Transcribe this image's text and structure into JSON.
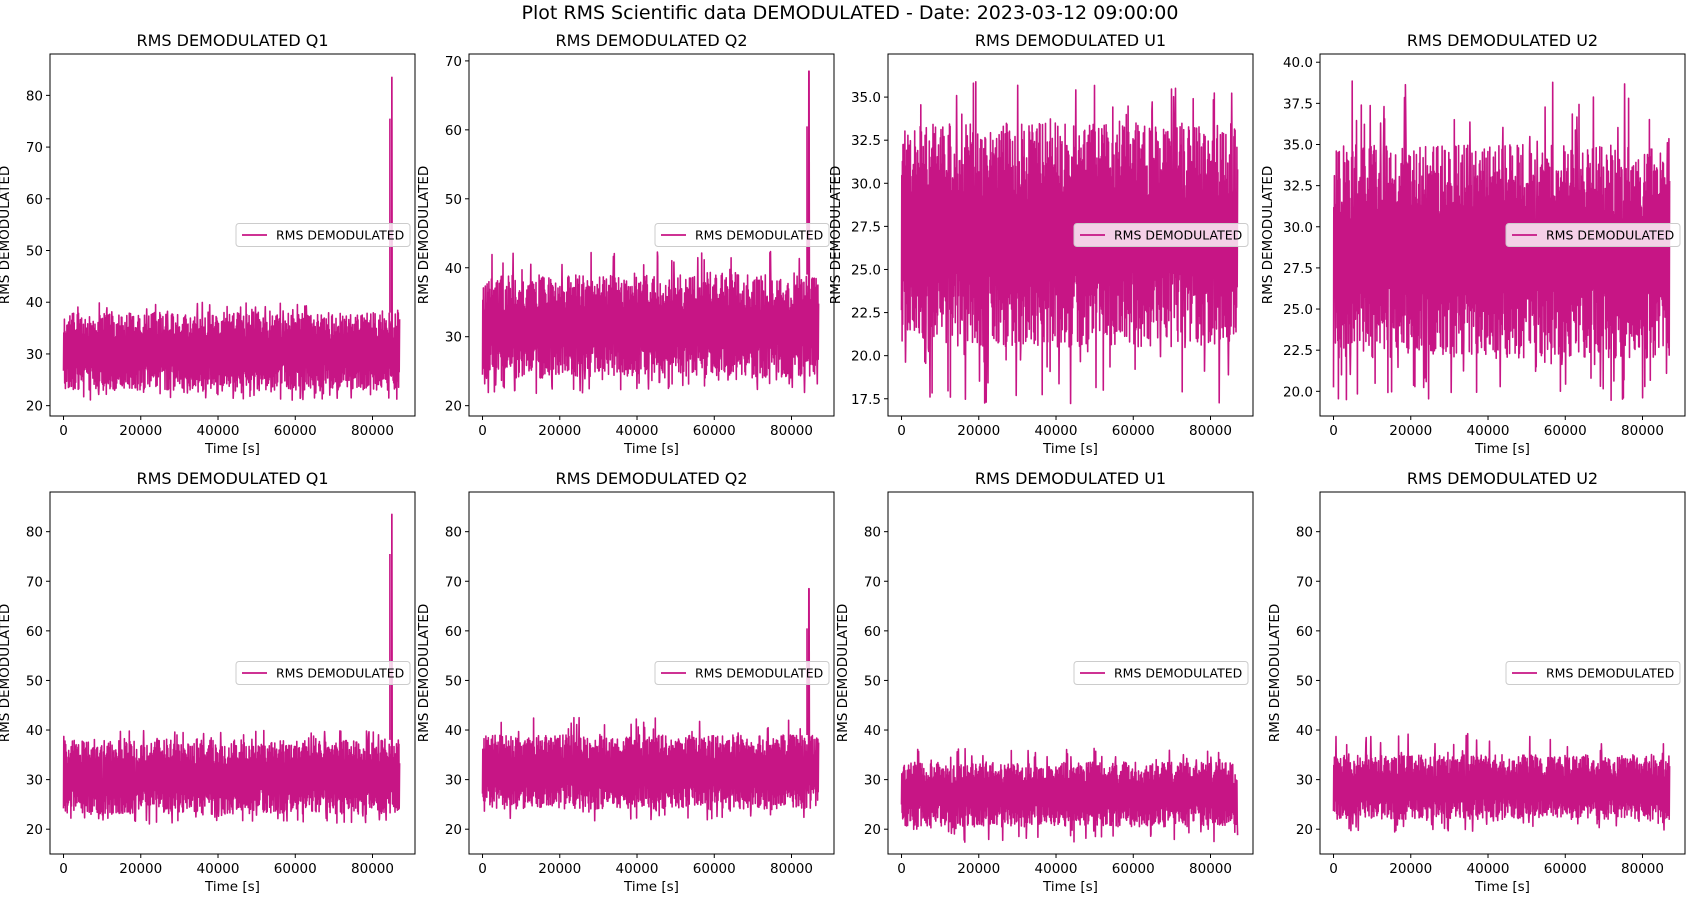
{
  "figure": {
    "title": "Plot RMS Scientific data DEMODULATED - Date: 2023-03-12 09:00:00",
    "line_color": "#C71585"
  },
  "chart_data": [
    {
      "id": "q1-top",
      "type": "line",
      "title": "RMS DEMODULATED Q1",
      "xlabel": "Time [s]",
      "ylabel": "RMS DEMODULATED",
      "xlim": [
        -3500,
        91000
      ],
      "ylim": [
        18,
        88
      ],
      "xticks": [
        0,
        20000,
        40000,
        60000,
        80000
      ],
      "yticks": [
        20,
        30,
        40,
        50,
        60,
        70,
        80
      ],
      "legend": "center-right",
      "series": [
        {
          "name": "RMS DEMODULATED",
          "x_range": [
            0,
            87000
          ],
          "band_low": 23,
          "band_high": 38,
          "extremes": [
            21,
            40
          ],
          "spike": {
            "x": 85000,
            "y": 83.5
          }
        }
      ]
    },
    {
      "id": "q2-top",
      "type": "line",
      "title": "RMS DEMODULATED Q2",
      "xlabel": "Time [s]",
      "ylabel": "RMS DEMODULATED",
      "xlim": [
        -3500,
        91000
      ],
      "ylim": [
        18.5,
        71
      ],
      "xticks": [
        0,
        20000,
        40000,
        60000,
        80000
      ],
      "yticks": [
        20,
        30,
        40,
        50,
        60,
        70
      ],
      "legend": "center-right",
      "series": [
        {
          "name": "RMS DEMODULATED",
          "x_range": [
            0,
            87000
          ],
          "band_low": 24,
          "band_high": 39,
          "extremes": [
            21.5,
            42.5
          ],
          "spike": {
            "x": 84500,
            "y": 68.5
          }
        }
      ]
    },
    {
      "id": "u1-top",
      "type": "line",
      "title": "RMS DEMODULATED U1",
      "xlabel": "Time [s]",
      "ylabel": "RMS DEMODULATED",
      "xlim": [
        -3500,
        91000
      ],
      "ylim": [
        16.5,
        37.5
      ],
      "xticks": [
        0,
        20000,
        40000,
        60000,
        80000
      ],
      "yticks": [
        17.5,
        20.0,
        22.5,
        25.0,
        27.5,
        30.0,
        32.5,
        35.0
      ],
      "legend": "center-right",
      "series": [
        {
          "name": "RMS DEMODULATED",
          "x_range": [
            0,
            87000
          ],
          "band_low": 20.5,
          "band_high": 33.5,
          "extremes": [
            17.2,
            36.3
          ],
          "spike": null
        }
      ]
    },
    {
      "id": "u2-top",
      "type": "line",
      "title": "RMS DEMODULATED U2",
      "xlabel": "Time [s]",
      "ylabel": "RMS DEMODULATED",
      "xlim": [
        -3500,
        91000
      ],
      "ylim": [
        18.5,
        40.5
      ],
      "xticks": [
        0,
        20000,
        40000,
        60000,
        80000
      ],
      "yticks": [
        20.0,
        22.5,
        25.0,
        27.5,
        30.0,
        32.5,
        35.0,
        37.5,
        40.0
      ],
      "legend": "center-right",
      "series": [
        {
          "name": "RMS DEMODULATED",
          "x_range": [
            0,
            87000
          ],
          "band_low": 22,
          "band_high": 35,
          "extremes": [
            19.2,
            39.3
          ],
          "spike": null
        }
      ]
    },
    {
      "id": "q1-bottom",
      "type": "line",
      "title": "RMS DEMODULATED Q1",
      "xlabel": "Time [s]",
      "ylabel": "RMS DEMODULATED",
      "xlim": [
        -3500,
        91000
      ],
      "ylim": [
        15,
        88
      ],
      "xticks": [
        0,
        20000,
        40000,
        60000,
        80000
      ],
      "yticks": [
        20,
        30,
        40,
        50,
        60,
        70,
        80
      ],
      "legend": "center-right",
      "series": [
        {
          "name": "RMS DEMODULATED",
          "x_range": [
            0,
            87000
          ],
          "band_low": 23,
          "band_high": 38,
          "extremes": [
            21,
            40
          ],
          "spike": {
            "x": 85000,
            "y": 83.5
          }
        }
      ]
    },
    {
      "id": "q2-bottom",
      "type": "line",
      "title": "RMS DEMODULATED Q2",
      "xlabel": "Time [s]",
      "ylabel": "RMS DEMODULATED",
      "xlim": [
        -3500,
        91000
      ],
      "ylim": [
        15,
        88
      ],
      "xticks": [
        0,
        20000,
        40000,
        60000,
        80000
      ],
      "yticks": [
        20,
        30,
        40,
        50,
        60,
        70,
        80
      ],
      "legend": "center-right",
      "series": [
        {
          "name": "RMS DEMODULATED",
          "x_range": [
            0,
            87000
          ],
          "band_low": 24,
          "band_high": 39,
          "extremes": [
            21.5,
            42.5
          ],
          "spike": {
            "x": 84500,
            "y": 68.5
          }
        }
      ]
    },
    {
      "id": "u1-bottom",
      "type": "line",
      "title": "RMS DEMODULATED U1",
      "xlabel": "Time [s]",
      "ylabel": "RMS DEMODULATED",
      "xlim": [
        -3500,
        91000
      ],
      "ylim": [
        15,
        88
      ],
      "xticks": [
        0,
        20000,
        40000,
        60000,
        80000
      ],
      "yticks": [
        20,
        30,
        40,
        50,
        60,
        70,
        80
      ],
      "legend": "center-right",
      "series": [
        {
          "name": "RMS DEMODULATED",
          "x_range": [
            0,
            87000
          ],
          "band_low": 20.5,
          "band_high": 33.5,
          "extremes": [
            17.2,
            36.3
          ],
          "spike": null
        }
      ]
    },
    {
      "id": "u2-bottom",
      "type": "line",
      "title": "RMS DEMODULATED U2",
      "xlabel": "Time [s]",
      "ylabel": "RMS DEMODULATED",
      "xlim": [
        -3500,
        91000
      ],
      "ylim": [
        15,
        88
      ],
      "xticks": [
        0,
        20000,
        40000,
        60000,
        80000
      ],
      "yticks": [
        20,
        30,
        40,
        50,
        60,
        70,
        80
      ],
      "legend": "center-right",
      "series": [
        {
          "name": "RMS DEMODULATED",
          "x_range": [
            0,
            87000
          ],
          "band_low": 22,
          "band_high": 35,
          "extremes": [
            19.2,
            39.3
          ],
          "spike": null
        }
      ]
    }
  ]
}
